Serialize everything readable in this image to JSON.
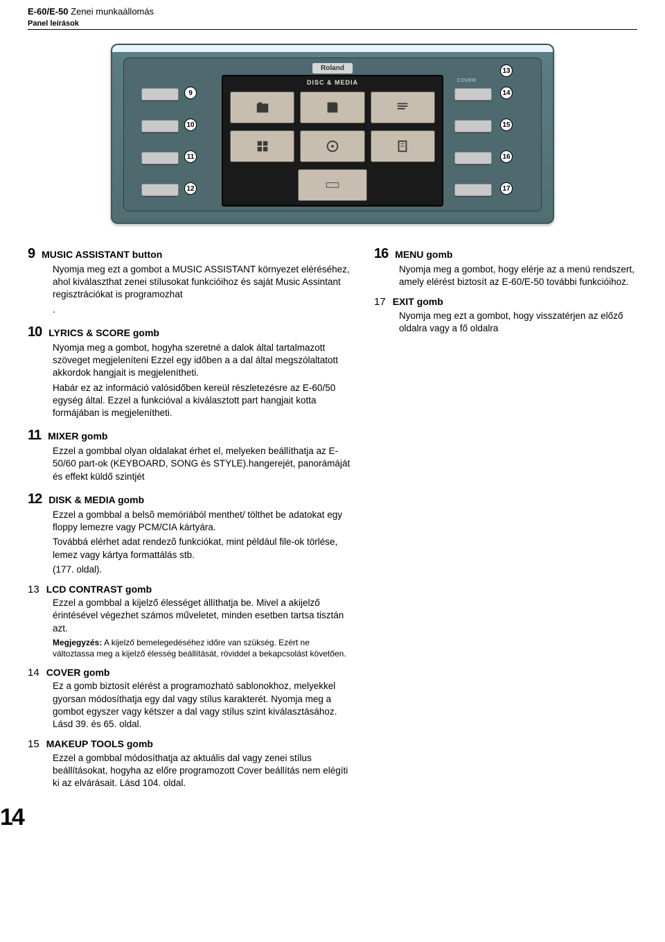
{
  "header": {
    "title_bold": "E-60/E-50",
    "title_light": " Zenei munkaállomás",
    "subtitle": "Panel leírások"
  },
  "device": {
    "brand": "Roland",
    "lcd_title": "DISC & MEDIA",
    "callouts_left": [
      "9",
      "10",
      "11",
      "12"
    ],
    "callouts_right": [
      "13",
      "14",
      "15",
      "16",
      "17"
    ],
    "labels_right": [
      "COVER"
    ]
  },
  "left_items": [
    {
      "num": "9",
      "title": "MUSIC ASSISTANT button",
      "paras": [
        "Nyomja meg ezt a gombot a  MUSIC ASSISTANT környezet eléréséhez, ahol kiválaszthat zenei stílusokat funkcióihoz és saját Music Assintant regisztrációkat is programozhat",
        "."
      ]
    },
    {
      "num": "10",
      "title": "LYRICS & SCORE gomb",
      "paras": [
        "Nyomja meg a gombot, hogyha szeretné a dalok által tartalmazott szöveget megjeleníteni    Ezzel egy időben a a dal által megszólaltatott akkordok hangjait is megjelenítheti.",
        "Habár ez az információ valósidőben kereül részletezésre az E-60/50 egység által. Ezzel a funkcióval a kiválasztott part hangjait kotta formájában is megjelenítheti."
      ]
    },
    {
      "num": "11",
      "title": "MIXER gomb",
      "paras": [
        "Ezzel a gombbal olyan oldalakat érhet el, melyeken beállíthatja az E-50/60 part-ok (KEYBOARD, SONG és STYLE).hangerejét, panorámáját és effekt küldő szintjét"
      ]
    },
    {
      "num": "12",
      "title": "DISK & MEDIA gomb",
      "paras": [
        "Ezzel a gombbal a belsõ memóriából menthet/ tölthet be adatokat egy floppy lemezre vagy PCM/CIA kártyára.",
        "Továbbá elérhet adat rendezõ funkciókat, mint például file-ok törlése, lemez vagy kártya formattálás stb.",
        "(177. oldal)."
      ]
    },
    {
      "num": "13",
      "thin": true,
      "title": "LCD CONTRAST gomb",
      "paras": [
        "Ezzel a gombbal a kijelző élességet állíthatja be. Mivel a akijelző érintésével végezhet számos műveletet, minden esetben tartsa tisztán azt."
      ],
      "note_label": "Megjegyzés:",
      "note_text": " A kijelző bemelegedéséhez időre van szükség. Ezért ne változtassa meg a kijelző élesség beállítását, röviddel a bekapcsolást követően."
    },
    {
      "num": "14",
      "thin": true,
      "title": "COVER gomb",
      "paras": [
        "Ez a gomb biztosít elérést a programozható sablonokhoz, melyekkel gyorsan módosíthatja egy dal vagy stílus karakterét. Nyomja meg a gombot egyszer vagy kétszer a dal vagy stílus szint kiválasztásához. Lásd 39. és 65. oldal."
      ]
    },
    {
      "num": "15",
      "thin": true,
      "title": "MAKEUP TOOLS gomb",
      "paras": [
        "Ezzel a gombbal módosíthatja az aktuális dal vagy zenei stílus beállításokat, hogyha az előre programozott Cover beállítás nem elégíti ki az elvárásait. Lásd 104. oldal."
      ]
    }
  ],
  "right_items": [
    {
      "num": "16",
      "title": "MENU gomb",
      "paras": [
        "Nyomja meg a gombot, hogy elérje az a menü rendszert, amely elérést biztosít az E-60/E-50 további funkcióihoz."
      ]
    },
    {
      "num": "17",
      "thin": true,
      "title": "EXIT gomb",
      "paras": [
        "Nyomja meg ezt a gombot, hogy visszatérjen az előző oldalra vagy a fő oldalra"
      ]
    }
  ],
  "page_number": "14"
}
